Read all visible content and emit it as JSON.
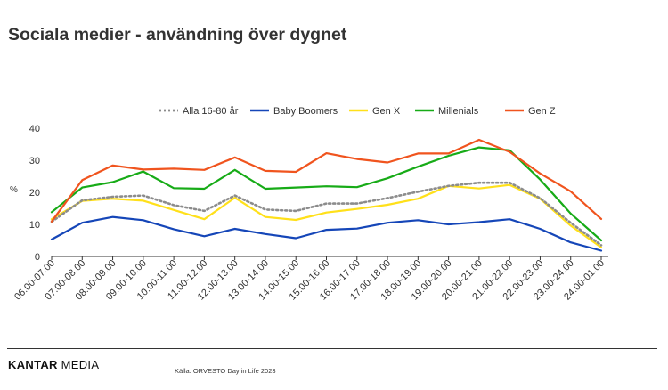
{
  "page": {
    "title": "Sociala medier - användning över dygnet",
    "brand_part1": "KANTAR",
    "brand_part2": "MEDIA",
    "source": "Källa: ORVESTO Day in Life 2023"
  },
  "chart_data": {
    "type": "line",
    "title": "",
    "xlabel": "",
    "ylabel": "%",
    "ylim": [
      0,
      40
    ],
    "yticks": [
      0,
      10,
      20,
      30,
      40
    ],
    "grid": false,
    "legend_position": "top",
    "categories": [
      "06.00-07.00",
      "07.00-08.00",
      "08.00-09.00",
      "09.00-10.00",
      "10.00-11.00",
      "11.00-12.00",
      "12.00-13.00",
      "13.00-14.00",
      "14.00-15.00",
      "15.00-16.00",
      "16.00-17.00",
      "17.00-18.00",
      "18.00-19.00",
      "19.00-20.00",
      "20.00-21.00",
      "21.00-22.00",
      "22.00-23.00",
      "23.00-24.00",
      "24.00-01.00"
    ],
    "series": [
      {
        "name": "Alla 16-80 år",
        "color": "#8c8c8c",
        "style": "dotted",
        "values": [
          10.8,
          17.5,
          18.6,
          19.0,
          16.0,
          14.2,
          19.0,
          14.6,
          14.2,
          16.5,
          16.5,
          18.2,
          20.2,
          22.0,
          23.0,
          23.0,
          18.2,
          10.5,
          3.5
        ]
      },
      {
        "name": "Baby Boomers",
        "color": "#1546b8",
        "style": "solid",
        "values": [
          5.3,
          10.5,
          12.3,
          11.3,
          8.5,
          6.3,
          8.6,
          7.0,
          5.7,
          8.3,
          8.7,
          10.5,
          11.3,
          10.0,
          10.7,
          11.6,
          8.6,
          4.4,
          1.8
        ]
      },
      {
        "name": "Gen X",
        "color": "#ffe01a",
        "style": "solid",
        "values": [
          11.6,
          17.3,
          18.0,
          17.4,
          14.5,
          11.6,
          18.3,
          12.3,
          11.4,
          13.7,
          14.8,
          16.1,
          18.0,
          22.0,
          21.2,
          22.3,
          18.0,
          9.6,
          2.8
        ]
      },
      {
        "name": "Millenials",
        "color": "#17ab17",
        "style": "solid",
        "values": [
          13.8,
          21.5,
          23.2,
          26.5,
          21.3,
          21.1,
          27.0,
          21.1,
          21.5,
          21.9,
          21.6,
          24.4,
          28.0,
          31.4,
          34.0,
          33.1,
          24.0,
          13.4,
          5.0
        ]
      },
      {
        "name": "Gen Z",
        "color": "#f0541e",
        "style": "solid",
        "values": [
          10.9,
          23.8,
          28.4,
          27.1,
          27.4,
          27.0,
          30.9,
          26.7,
          26.4,
          32.2,
          30.4,
          29.3,
          32.1,
          32.1,
          36.4,
          32.6,
          25.9,
          20.3,
          11.7
        ]
      }
    ]
  }
}
